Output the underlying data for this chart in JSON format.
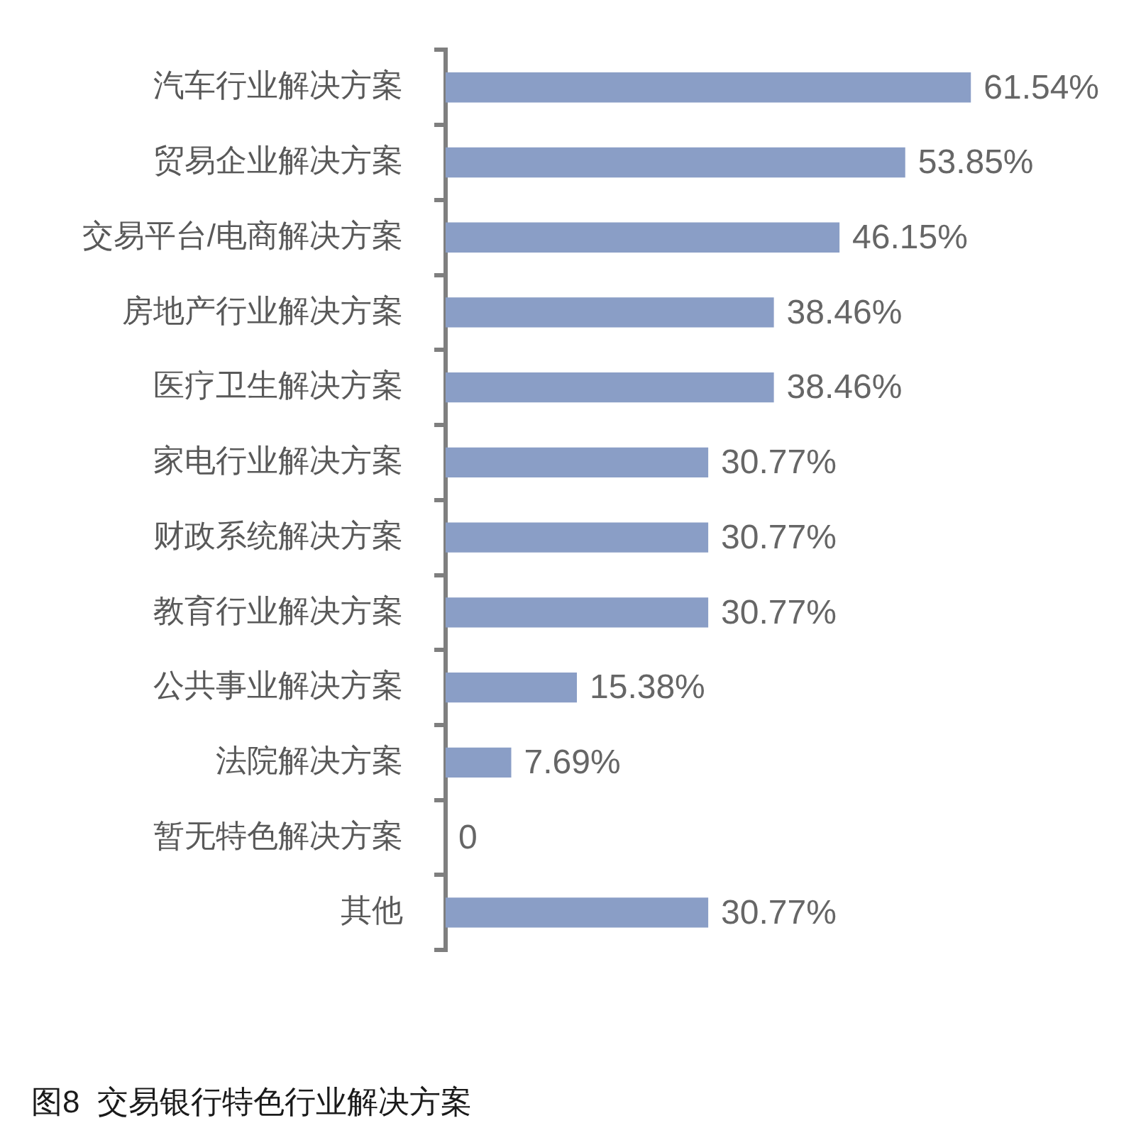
{
  "chart_data": {
    "type": "bar",
    "orientation": "horizontal",
    "title": "图8  交易银行特色行业解决方案",
    "categories": [
      "汽车行业解决方案",
      "贸易企业解决方案",
      "交易平台/电商解决方案",
      "房地产行业解决方案",
      "医疗卫生解决方案",
      "家电行业解决方案",
      "财政系统解决方案",
      "教育行业解决方案",
      "公共事业解决方案",
      "法院解决方案",
      "暂无特色解决方案",
      "其他"
    ],
    "values": [
      61.54,
      53.85,
      46.15,
      38.46,
      38.46,
      30.77,
      30.77,
      30.77,
      15.38,
      7.69,
      0,
      30.77
    ],
    "value_labels": [
      "61.54%",
      "53.85%",
      "46.15%",
      "38.46%",
      "38.46%",
      "30.77%",
      "30.77%",
      "30.77%",
      "15.38%",
      "7.69%",
      "0",
      "30.77%"
    ],
    "color": "#8a9ec6",
    "grid": false,
    "legend": false,
    "tick_labels": "y"
  }
}
